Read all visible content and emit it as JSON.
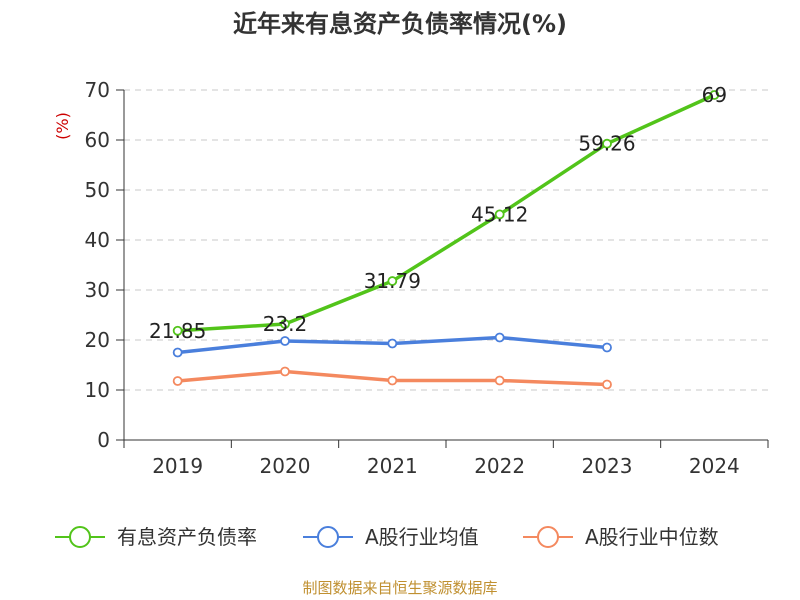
{
  "chart_data": {
    "type": "line",
    "title": "近年来有息资产负债率情况(%)",
    "ylabel": "(%)",
    "xlabel": "",
    "categories": [
      "2019",
      "2020",
      "2021",
      "2022",
      "2023",
      "2024"
    ],
    "ylim": [
      0,
      70
    ],
    "yticks": [
      0,
      10,
      20,
      30,
      40,
      50,
      60,
      70
    ],
    "grid": true,
    "legend_position": "bottom",
    "series": [
      {
        "name": "有息资产负债率",
        "color": "#52c41a",
        "values": [
          21.85,
          23.2,
          31.79,
          45.12,
          59.26,
          69
        ],
        "labels": [
          "21.85",
          "23.2",
          "31.79",
          "45.12",
          "59.26",
          "69"
        ]
      },
      {
        "name": "A股行业均值",
        "color": "#4a7fdc",
        "values": [
          17.5,
          19.8,
          19.3,
          20.5,
          18.5,
          null
        ]
      },
      {
        "name": "A股行业中位数",
        "color": "#f4895f",
        "values": [
          11.8,
          13.7,
          11.9,
          11.9,
          11.1,
          null
        ]
      }
    ],
    "source": "制图数据来自恒生聚源数据库",
    "ylabel_color": "#cc0000",
    "source_color": "#c09030"
  }
}
